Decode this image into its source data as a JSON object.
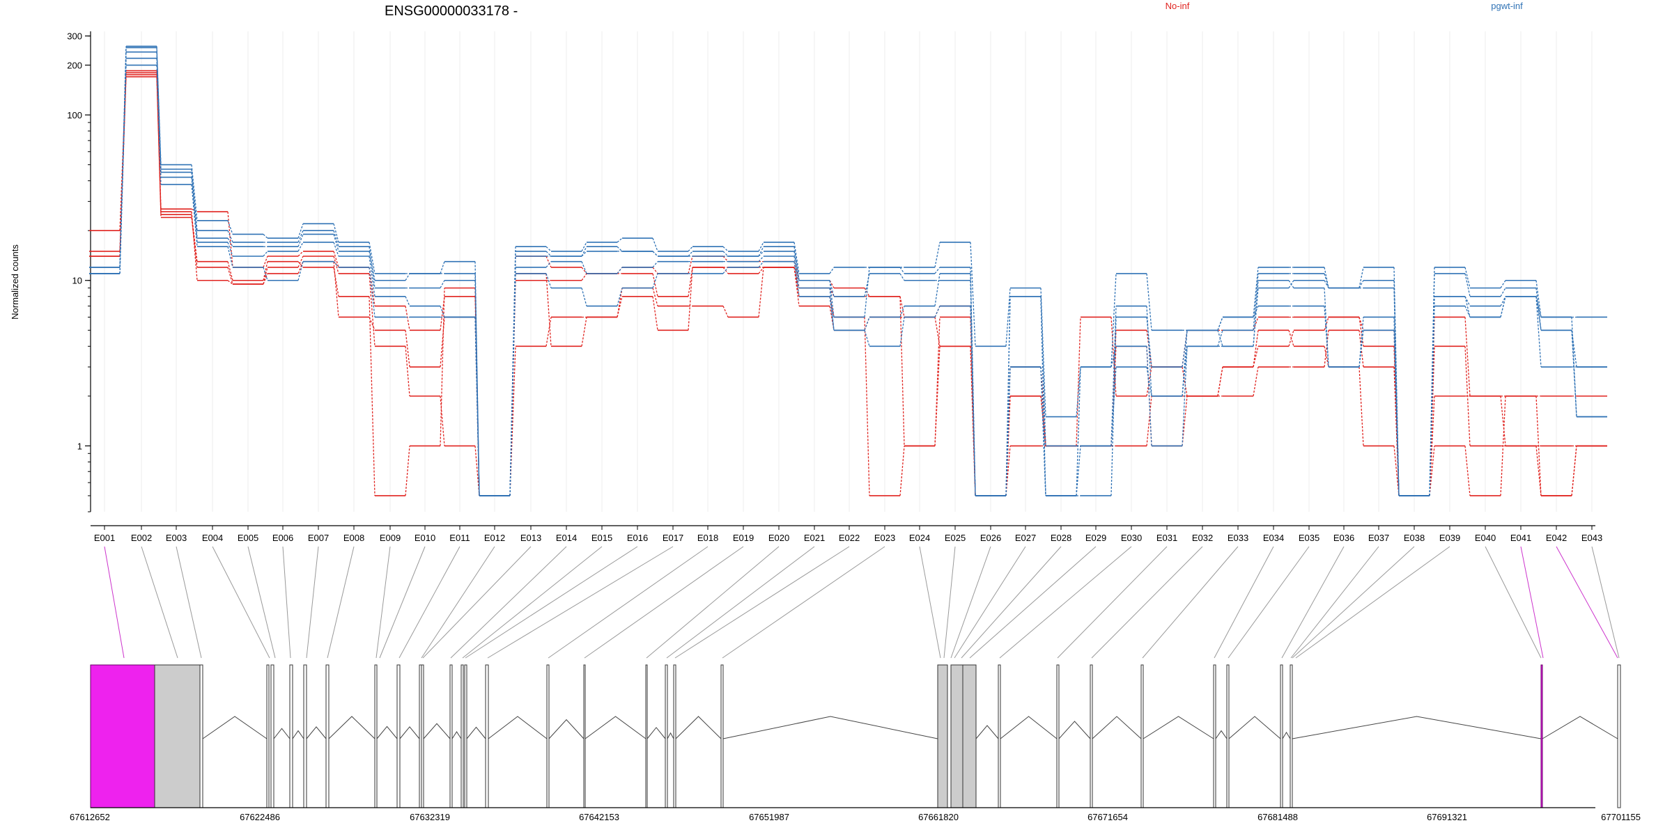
{
  "chart_data": {
    "type": "line",
    "title": "ENSG00000033178 -",
    "ylabel": "Normalized counts",
    "yscale": "log",
    "ylim": [
      0.4,
      320
    ],
    "yticks": [
      1,
      10,
      100,
      200,
      300
    ],
    "grid": "vertical",
    "legend_placement": "top",
    "categories": [
      "E001",
      "E002",
      "E003",
      "E004",
      "E005",
      "E006",
      "E007",
      "E008",
      "E009",
      "E010",
      "E011",
      "E012",
      "E013",
      "E014",
      "E015",
      "E016",
      "E017",
      "E018",
      "E019",
      "E020",
      "E021",
      "E022",
      "E023",
      "E024",
      "E025",
      "E026",
      "E027",
      "E028",
      "E029",
      "E030",
      "E031",
      "E032",
      "E033",
      "E034",
      "E035",
      "E036",
      "E037",
      "E038",
      "E039",
      "E040",
      "E041",
      "E042",
      "E043"
    ],
    "groups": [
      {
        "name": "No-inf",
        "color": "#e0231f"
      },
      {
        "name": "pgwt-inf",
        "color": "#2f72b5"
      }
    ],
    "series": [
      {
        "group": "No-inf",
        "values": [
          20,
          185,
          27,
          26,
          12,
          14,
          15,
          12,
          7,
          5,
          8,
          0.5,
          14,
          12,
          11,
          12,
          11,
          14,
          13,
          13,
          10,
          9,
          8,
          6,
          7,
          0.5,
          3,
          1,
          1,
          5,
          3,
          5,
          5,
          6,
          6,
          6,
          5,
          0.5,
          6,
          2,
          2,
          2,
          2
        ]
      },
      {
        "group": "No-inf",
        "values": [
          15,
          170,
          26,
          10,
          9.5,
          12,
          14,
          11,
          4,
          2,
          1,
          0.5,
          11,
          4,
          6,
          9,
          7,
          7,
          6,
          12,
          9,
          8,
          8,
          1,
          4,
          0.5,
          1,
          1,
          6,
          2,
          3,
          2,
          3,
          4,
          5,
          6,
          4,
          0.5,
          2,
          2,
          1,
          1,
          1
        ]
      },
      {
        "group": "No-inf",
        "values": [
          14,
          180,
          25,
          13,
          10,
          13,
          12,
          8,
          0.5,
          1,
          9,
          0.5,
          4,
          6,
          6,
          8,
          5,
          12,
          12,
          12,
          8,
          6,
          0.5,
          1,
          6,
          0.5,
          2,
          1,
          1,
          1,
          2,
          2,
          3,
          5,
          4,
          3,
          1,
          0.5,
          4,
          1,
          1,
          0.5,
          1
        ]
      },
      {
        "group": "No-inf",
        "values": [
          14,
          175,
          24,
          12,
          9.5,
          11,
          13,
          6,
          5,
          3,
          6,
          0.5,
          10,
          10,
          11,
          11,
          8,
          12,
          11,
          12,
          7,
          5,
          6,
          6,
          4,
          0.5,
          2,
          1,
          1,
          4,
          1,
          2,
          2,
          3,
          3,
          5,
          3,
          0.5,
          1,
          0.5,
          2,
          0.5,
          1
        ]
      },
      {
        "group": "pgwt-inf",
        "values": [
          11,
          260,
          50,
          23,
          19,
          18,
          22,
          17,
          11,
          11,
          13,
          0.5,
          16,
          15,
          17,
          18,
          15,
          16,
          15,
          17,
          11,
          12,
          12,
          12,
          17,
          4,
          9,
          1.5,
          3,
          11,
          5,
          5,
          6,
          12,
          12,
          9,
          12,
          0.5,
          12,
          9,
          10,
          6,
          6
        ]
      },
      {
        "group": "pgwt-inf",
        "values": [
          12,
          255,
          47,
          20,
          17,
          17,
          20,
          16,
          9,
          9,
          10,
          0.5,
          15,
          14,
          15,
          15,
          14,
          15,
          14,
          16,
          10,
          8,
          11,
          10,
          10,
          0.5,
          8,
          1,
          1,
          7,
          2,
          4,
          5,
          11,
          11,
          9,
          10,
          0.5,
          11,
          8,
          9,
          5,
          3
        ]
      },
      {
        "group": "pgwt-inf",
        "values": [
          11,
          240,
          45,
          18,
          16,
          16,
          19,
          15,
          10,
          11,
          11,
          0.5,
          14,
          14,
          16,
          15,
          14,
          14,
          14,
          15,
          10,
          6,
          12,
          11,
          12,
          0.5,
          8,
          0.5,
          0.5,
          6,
          3,
          5,
          4,
          9,
          10,
          9,
          9,
          0.5,
          8,
          6,
          8,
          5,
          1.5
        ]
      },
      {
        "group": "pgwt-inf",
        "values": [
          12,
          220,
          42,
          17,
          14,
          15,
          17,
          14,
          8,
          7,
          6,
          0.5,
          12,
          13,
          11,
          12,
          13,
          13,
          13,
          14,
          9,
          5,
          6,
          7,
          11,
          0.5,
          3,
          0.5,
          3,
          4,
          1,
          4,
          4,
          10,
          9,
          3,
          6,
          0.5,
          7,
          6,
          8,
          3,
          3
        ]
      },
      {
        "group": "pgwt-inf",
        "values": [
          11,
          200,
          38,
          16,
          12,
          10,
          13,
          12,
          6,
          6,
          6,
          0.5,
          11,
          9,
          7,
          9,
          11,
          11,
          12,
          13,
          8,
          5,
          4,
          6,
          7,
          0.5,
          3,
          0.5,
          1,
          3,
          2,
          5,
          6,
          7,
          7,
          3,
          5,
          0.5,
          8,
          7,
          8,
          6,
          1.5
        ]
      }
    ],
    "gene_model": {
      "coordinates": [
        "67612652",
        "67622486",
        "67632319",
        "67642153",
        "67651987",
        "67661820",
        "67671654",
        "67681488",
        "67691321",
        "67701155"
      ],
      "highlight_color": "#ee22ee",
      "intron_color": "#444444"
    }
  }
}
